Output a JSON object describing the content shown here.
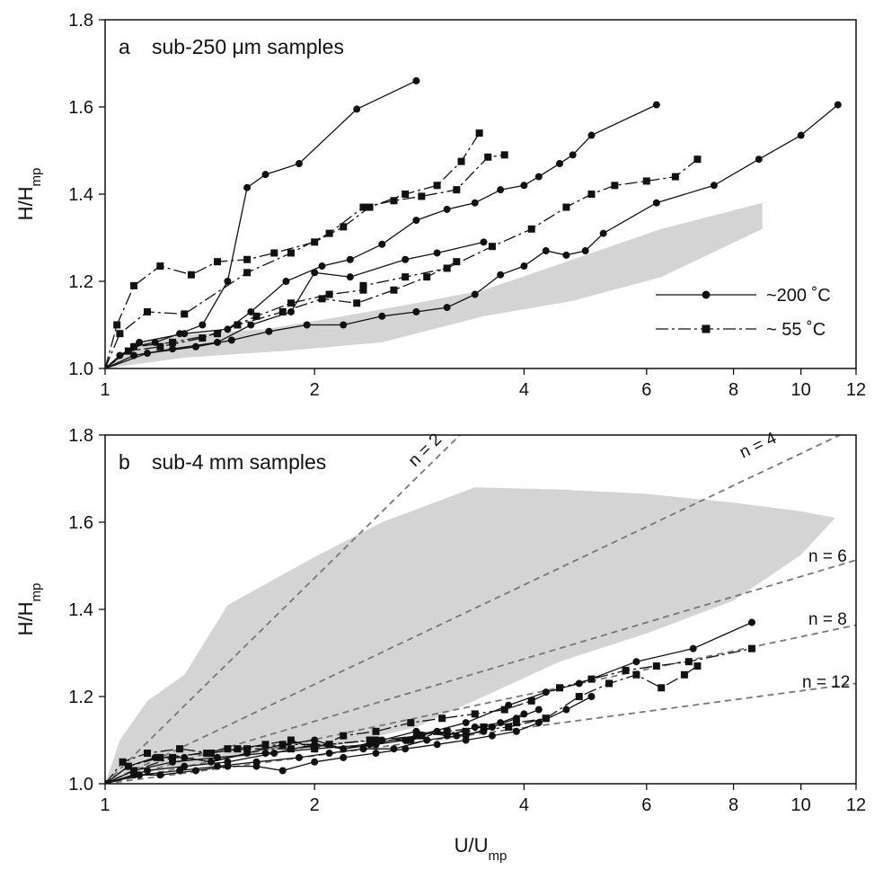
{
  "chart_data": [
    {
      "type": "line",
      "panel_letter": "a",
      "title": "sub-250 μm samples",
      "ylabel": "H/H",
      "ylabel_sub": "mp",
      "xlabel": "",
      "xscale": "log",
      "xlim": [
        1,
        12
      ],
      "ylim": [
        1.0,
        1.8
      ],
      "x_ticks": [
        1,
        2,
        4,
        6,
        8,
        10,
        12
      ],
      "y_ticks": [
        1.0,
        1.2,
        1.4,
        1.6,
        1.8
      ],
      "y_tick_labels": [
        "1.0",
        "1.2",
        "1.4",
        "1.6",
        "1.8"
      ],
      "legend": {
        "position": "right",
        "entries": [
          {
            "label": "~200 ˚C",
            "marker": "circle",
            "line": "solid"
          },
          {
            "label": "~ 55 ˚C",
            "marker": "square",
            "line": "dashed"
          }
        ]
      },
      "band": {
        "color": "#d4d4d4",
        "points": [
          [
            1.0,
            1.0
          ],
          [
            1.15,
            1.065
          ],
          [
            1.35,
            1.08
          ],
          [
            1.7,
            1.09
          ],
          [
            2.2,
            1.12
          ],
          [
            2.8,
            1.15
          ],
          [
            3.5,
            1.18
          ],
          [
            4.7,
            1.25
          ],
          [
            6.3,
            1.32
          ],
          [
            8.8,
            1.38
          ],
          [
            8.8,
            1.32
          ],
          [
            6.3,
            1.21
          ],
          [
            4.7,
            1.155
          ],
          [
            3.5,
            1.12
          ],
          [
            2.5,
            1.06
          ],
          [
            1.8,
            1.04
          ],
          [
            1.3,
            1.025
          ],
          [
            1.0,
            1.0
          ]
        ]
      },
      "series": [
        {
          "marker": "circle",
          "line": "solid",
          "x": [
            1.0,
            1.05,
            1.1,
            1.18,
            1.28,
            1.38,
            1.5,
            1.6,
            1.7,
            1.9,
            2.3,
            2.8
          ],
          "y": [
            1.0,
            1.03,
            1.05,
            1.06,
            1.08,
            1.1,
            1.2,
            1.415,
            1.445,
            1.47,
            1.595,
            1.66
          ]
        },
        {
          "marker": "circle",
          "line": "solid",
          "x": [
            1.0,
            1.12,
            1.3,
            1.5,
            1.62,
            1.82,
            2.05,
            2.25,
            2.5,
            2.8,
            3.1,
            3.4,
            3.7,
            4.0,
            4.2,
            4.5,
            4.7,
            5.0,
            6.2
          ],
          "y": [
            1.0,
            1.06,
            1.08,
            1.09,
            1.13,
            1.2,
            1.235,
            1.25,
            1.285,
            1.34,
            1.365,
            1.38,
            1.41,
            1.42,
            1.44,
            1.47,
            1.49,
            1.535,
            1.605
          ]
        },
        {
          "marker": "circle",
          "line": "solid",
          "x": [
            1.0,
            1.15,
            1.35,
            1.52,
            1.72,
            1.95,
            2.2,
            2.5,
            2.8,
            3.1,
            3.4,
            3.7,
            4.0,
            4.3,
            4.6,
            4.9,
            5.2,
            6.2,
            7.5,
            8.7,
            10.0,
            11.3
          ],
          "y": [
            1.0,
            1.035,
            1.05,
            1.065,
            1.085,
            1.1,
            1.1,
            1.12,
            1.13,
            1.14,
            1.17,
            1.215,
            1.235,
            1.27,
            1.26,
            1.27,
            1.31,
            1.38,
            1.42,
            1.48,
            1.535,
            1.605
          ]
        },
        {
          "marker": "circle",
          "line": "solid",
          "x": [
            1.0,
            1.1,
            1.25,
            1.45,
            1.62,
            1.85,
            2.0,
            2.25,
            2.7,
            3.0,
            3.5
          ],
          "y": [
            1.0,
            1.03,
            1.045,
            1.06,
            1.1,
            1.13,
            1.22,
            1.21,
            1.25,
            1.265,
            1.29
          ]
        },
        {
          "marker": "square",
          "line": "dashed",
          "x": [
            1.0,
            1.04,
            1.1,
            1.2,
            1.33,
            1.45,
            1.6,
            1.75,
            2.0,
            2.2,
            2.4,
            2.7,
            3.0,
            3.25,
            3.45
          ],
          "y": [
            1.0,
            1.1,
            1.19,
            1.235,
            1.215,
            1.245,
            1.25,
            1.265,
            1.29,
            1.325,
            1.37,
            1.4,
            1.42,
            1.475,
            1.54
          ]
        },
        {
          "marker": "square",
          "line": "dashed",
          "x": [
            1.0,
            1.05,
            1.15,
            1.3,
            1.6,
            1.85,
            2.1,
            2.35,
            2.6,
            2.85,
            3.2,
            3.55,
            3.75
          ],
          "y": [
            1.0,
            1.08,
            1.13,
            1.125,
            1.22,
            1.265,
            1.31,
            1.37,
            1.385,
            1.395,
            1.41,
            1.485,
            1.49
          ]
        },
        {
          "marker": "square",
          "line": "dashed",
          "x": [
            1.0,
            1.1,
            1.25,
            1.45,
            1.65,
            1.85,
            2.1,
            2.35,
            2.35,
            2.7,
            3.1,
            3.6,
            4.1,
            4.6,
            5.0,
            5.4,
            6.0,
            6.6,
            7.1
          ],
          "y": [
            1.0,
            1.05,
            1.06,
            1.08,
            1.12,
            1.15,
            1.17,
            1.18,
            1.19,
            1.21,
            1.23,
            1.28,
            1.32,
            1.37,
            1.4,
            1.42,
            1.43,
            1.44,
            1.48
          ]
        },
        {
          "marker": "square",
          "line": "dashed",
          "x": [
            1.0,
            1.08,
            1.2,
            1.38,
            1.55,
            1.8,
            2.05,
            2.3,
            2.6,
            2.9,
            3.2
          ],
          "y": [
            1.0,
            1.04,
            1.05,
            1.07,
            1.1,
            1.13,
            1.16,
            1.15,
            1.18,
            1.21,
            1.245
          ]
        }
      ]
    },
    {
      "type": "line",
      "panel_letter": "b",
      "title": "sub-4 mm samples",
      "ylabel": "H/H",
      "ylabel_sub": "mp",
      "xlabel": "U/U",
      "xlabel_sub": "mp",
      "xscale": "log",
      "xlim": [
        1,
        12
      ],
      "ylim": [
        1.0,
        1.8
      ],
      "x_ticks": [
        1,
        2,
        4,
        6,
        8,
        10,
        12
      ],
      "y_ticks": [
        1.0,
        1.2,
        1.4,
        1.6,
        1.8
      ],
      "y_tick_labels": [
        "1.0",
        "1.2",
        "1.4",
        "1.6",
        "1.8"
      ],
      "band": {
        "color": "#d4d4d4",
        "points": [
          [
            1.0,
            1.0
          ],
          [
            1.05,
            1.1
          ],
          [
            1.15,
            1.19
          ],
          [
            1.3,
            1.25
          ],
          [
            1.5,
            1.41
          ],
          [
            2.0,
            1.52
          ],
          [
            2.5,
            1.6
          ],
          [
            3.4,
            1.68
          ],
          [
            4.5,
            1.675
          ],
          [
            6.0,
            1.665
          ],
          [
            8.0,
            1.645
          ],
          [
            10.0,
            1.625
          ],
          [
            11.2,
            1.61
          ],
          [
            10.0,
            1.525
          ],
          [
            8.0,
            1.42
          ],
          [
            6.0,
            1.345
          ],
          [
            4.5,
            1.28
          ],
          [
            3.5,
            1.2
          ],
          [
            2.8,
            1.13
          ],
          [
            2.2,
            1.09
          ],
          [
            1.7,
            1.07
          ],
          [
            1.3,
            1.04
          ],
          [
            1.1,
            1.02
          ],
          [
            1.0,
            1.0
          ]
        ]
      },
      "reference_lines": [
        {
          "label": "n = 2",
          "x": [
            1.0,
            3.26
          ],
          "y": [
            1.0,
            1.805
          ]
        },
        {
          "label": "n = 4",
          "x": [
            1.0,
            11.55
          ],
          "y": [
            1.0,
            1.805
          ]
        },
        {
          "label": "n = 6",
          "x": [
            1.0,
            12.0
          ],
          "y": [
            1.0,
            1.513
          ]
        },
        {
          "label": "n = 8",
          "x": [
            1.0,
            12.0
          ],
          "y": [
            1.0,
            1.364
          ]
        },
        {
          "label": "n = 12",
          "x": [
            1.0,
            12.0
          ],
          "y": [
            1.0,
            1.23
          ]
        }
      ],
      "series": [
        {
          "marker": "circle",
          "line": "solid",
          "x": [
            1.0,
            1.1,
            1.25,
            1.45,
            1.7,
            2.0,
            2.4,
            2.8,
            3.3,
            3.8,
            4.3,
            4.8,
            5.8,
            7.0,
            8.5
          ],
          "y": [
            1.0,
            1.03,
            1.05,
            1.06,
            1.07,
            1.08,
            1.09,
            1.11,
            1.14,
            1.18,
            1.21,
            1.23,
            1.28,
            1.31,
            1.37
          ]
        },
        {
          "marker": "circle",
          "line": "solid",
          "x": [
            1.0,
            1.1,
            1.2,
            1.35,
            1.5,
            1.65,
            1.8,
            2.0,
            2.2,
            2.45,
            2.7,
            3.0,
            3.3,
            3.6,
            3.9,
            4.2,
            4.6,
            5.0
          ],
          "y": [
            1.0,
            1.02,
            1.02,
            1.03,
            1.04,
            1.04,
            1.03,
            1.05,
            1.06,
            1.07,
            1.08,
            1.09,
            1.1,
            1.11,
            1.12,
            1.14,
            1.17,
            1.2
          ]
        },
        {
          "marker": "circle",
          "line": "solid",
          "x": [
            1.0,
            1.08,
            1.18,
            1.3,
            1.42,
            1.6,
            1.8,
            2.0,
            2.2,
            2.45,
            2.7,
            3.0,
            3.3,
            3.6,
            3.9,
            4.2
          ],
          "y": [
            1.0,
            1.04,
            1.06,
            1.06,
            1.05,
            1.07,
            1.09,
            1.1,
            1.08,
            1.09,
            1.1,
            1.12,
            1.11,
            1.13,
            1.15,
            1.17
          ]
        },
        {
          "marker": "circle",
          "line": "solid",
          "x": [
            1.0,
            1.15,
            1.3,
            1.5,
            1.75,
            2.0,
            2.2,
            2.5,
            2.8,
            3.1,
            3.4,
            3.7,
            4.0
          ],
          "y": [
            1.0,
            1.03,
            1.04,
            1.05,
            1.07,
            1.09,
            1.08,
            1.1,
            1.12,
            1.11,
            1.13,
            1.14,
            1.16
          ]
        },
        {
          "marker": "circle",
          "line": "solid",
          "x": [
            1.0,
            1.12,
            1.28,
            1.45,
            1.65,
            1.9,
            2.1,
            2.35,
            2.6,
            2.9,
            3.2,
            3.5
          ],
          "y": [
            1.0,
            1.02,
            1.03,
            1.04,
            1.05,
            1.06,
            1.07,
            1.08,
            1.08,
            1.1,
            1.11,
            1.12
          ]
        },
        {
          "marker": "square",
          "line": "dashed",
          "x": [
            1.0,
            1.06,
            1.15,
            1.28,
            1.42,
            1.55,
            1.7,
            1.85,
            2.0,
            2.2,
            2.45,
            2.75,
            3.05,
            3.4,
            3.75,
            4.1,
            4.5,
            5.0,
            5.6,
            6.2,
            6.9,
            8.5
          ],
          "y": [
            1.0,
            1.05,
            1.07,
            1.08,
            1.07,
            1.08,
            1.09,
            1.1,
            1.08,
            1.11,
            1.12,
            1.14,
            1.15,
            1.16,
            1.17,
            1.19,
            1.22,
            1.24,
            1.26,
            1.27,
            1.28,
            1.31
          ]
        },
        {
          "marker": "square",
          "line": "dashed",
          "x": [
            1.0,
            1.1,
            1.25,
            1.5,
            1.8,
            2.1,
            2.45,
            2.85,
            3.3,
            3.8,
            4.3,
            4.8,
            5.3,
            5.8,
            6.3,
            6.8,
            7.1
          ],
          "y": [
            1.0,
            1.03,
            1.06,
            1.08,
            1.09,
            1.09,
            1.1,
            1.11,
            1.12,
            1.13,
            1.15,
            1.2,
            1.23,
            1.25,
            1.22,
            1.25,
            1.27
          ]
        },
        {
          "marker": "square",
          "line": "dashed",
          "x": [
            1.0,
            1.08,
            1.2,
            1.4,
            1.6,
            1.85,
            2.1,
            2.4,
            2.75,
            3.1,
            3.5,
            3.9,
            4.3
          ],
          "y": [
            1.0,
            1.04,
            1.06,
            1.07,
            1.08,
            1.08,
            1.09,
            1.1,
            1.1,
            1.12,
            1.13,
            1.14,
            1.15
          ]
        }
      ]
    }
  ]
}
